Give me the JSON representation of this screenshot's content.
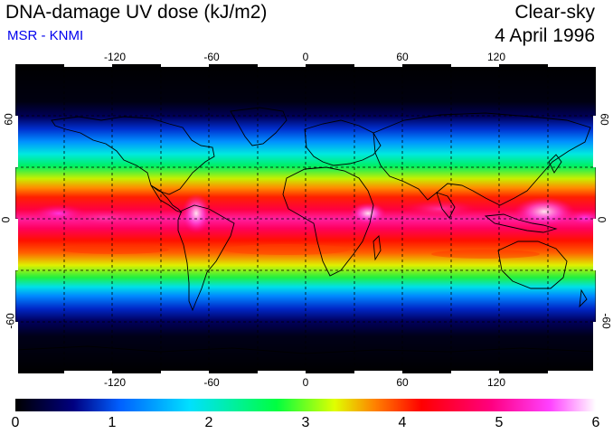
{
  "header": {
    "title": "DNA-damage UV dose (kJ/m2)",
    "subtitle": "MSR - KNMI",
    "condition": "Clear-sky",
    "date": "4 April 1996"
  },
  "colors": {
    "subtitle": "#0000ee",
    "map_background": "#000000",
    "coastline": "#000000",
    "gridline": "#000000"
  },
  "axes": {
    "top_longitudes": [
      "-120",
      "-60",
      "0",
      "60",
      "120"
    ],
    "bottom_longitudes": [
      "-120",
      "-60",
      "0",
      "60",
      "120"
    ],
    "left_latitudes": [
      "60",
      "0",
      "-60"
    ],
    "right_latitudes": [
      "60",
      "0",
      "-60"
    ]
  },
  "colorbar": {
    "ticks": [
      "0",
      "1",
      "2",
      "3",
      "4",
      "5",
      "6"
    ],
    "min": 0,
    "max": 6,
    "unit": "kJ/m2",
    "stops": [
      "#000000",
      "#000080",
      "#0060ff",
      "#00e0ff",
      "#00ff40",
      "#e0ff00",
      "#ff8000",
      "#ff0000",
      "#ff0080",
      "#ff40ff",
      "#ffffff"
    ]
  },
  "map": {
    "projection": "equirectangular",
    "lon_range": [
      -180,
      180
    ],
    "lat_range": [
      -90,
      90
    ],
    "gridlines_dashed": true,
    "grid_lon_step": 30,
    "grid_lat_step": 30
  }
}
